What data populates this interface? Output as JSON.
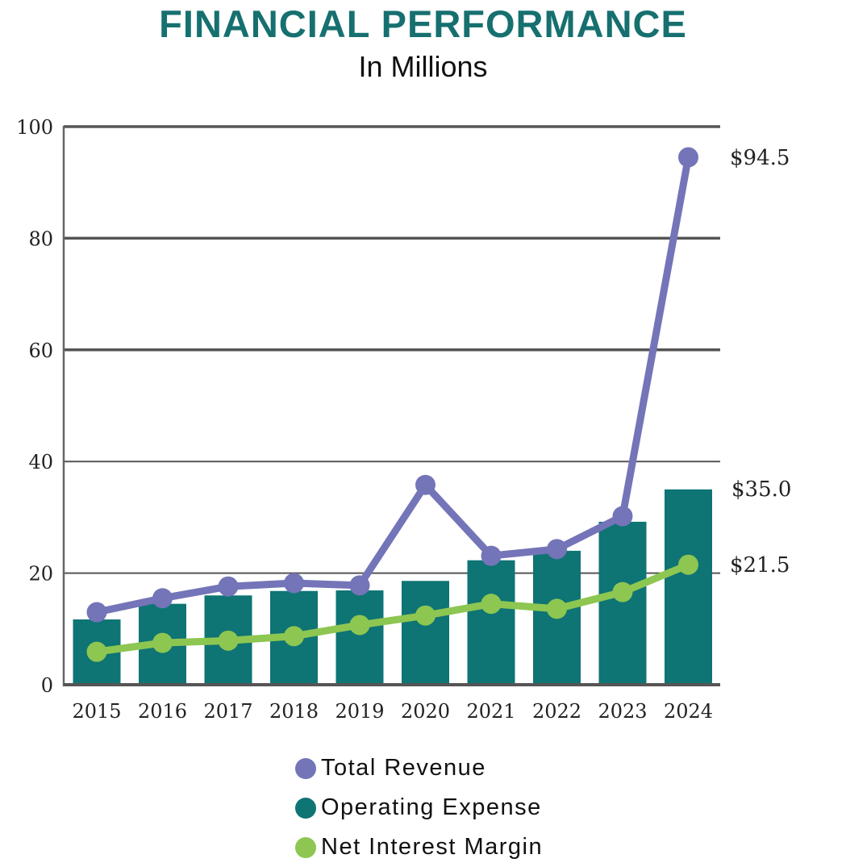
{
  "chart_data": {
    "type": "bar",
    "title": "FINANCIAL PERFORMANCE",
    "subtitle": "In Millions",
    "xlabel": "",
    "ylabel": "",
    "ylim": [
      0,
      100
    ],
    "yticks": [
      0,
      20,
      40,
      60,
      80,
      100
    ],
    "grid": true,
    "categories": [
      "2015",
      "2016",
      "2017",
      "2018",
      "2019",
      "2020",
      "2021",
      "2022",
      "2023",
      "2024"
    ],
    "series": [
      {
        "name": "Total Revenue",
        "type": "line",
        "color": "#7474b8",
        "values": [
          13.0,
          15.5,
          17.6,
          18.2,
          17.8,
          35.8,
          23.1,
          24.3,
          30.2,
          94.5
        ],
        "end_label": "$94.5"
      },
      {
        "name": "Operating Expense",
        "type": "bar",
        "color": "#0e7474",
        "values": [
          11.7,
          14.5,
          16.0,
          16.8,
          16.9,
          18.6,
          22.3,
          24.0,
          29.2,
          35.0
        ],
        "end_label": "$35.0"
      },
      {
        "name": "Net Interest Margin",
        "type": "line",
        "color": "#8dc651",
        "values": [
          5.9,
          7.5,
          7.9,
          8.7,
          10.7,
          12.4,
          14.5,
          13.6,
          16.6,
          21.5
        ],
        "end_label": "$21.5"
      }
    ],
    "legend_position": "bottom-center"
  },
  "colors": {
    "title": "#16706f",
    "grid": "#555555"
  }
}
